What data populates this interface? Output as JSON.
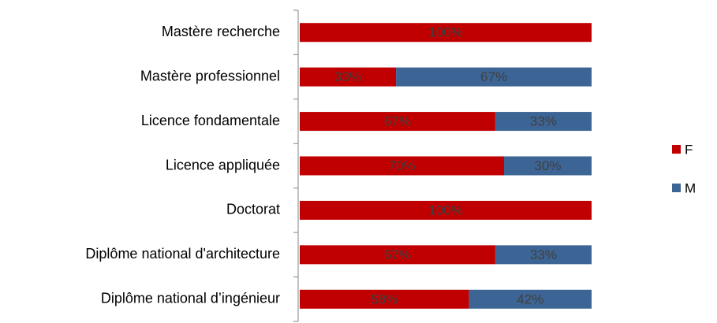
{
  "chart_data": {
    "type": "stacked-bar-horizontal",
    "categories": [
      "Mastère recherche",
      "Mastère professionnel",
      "Licence fondamentale",
      "Licence appliquée",
      "Doctorat",
      "Diplôme national d'architecture",
      "Diplôme national d’ingénieur"
    ],
    "xlim": [
      0,
      100
    ],
    "series": [
      {
        "name": "F",
        "color": "#c00000",
        "values": [
          100,
          33,
          67,
          70,
          100,
          67,
          58
        ],
        "value_labels": [
          "100%",
          "33%",
          "67%",
          "70%",
          "100%",
          "67%",
          "58%"
        ]
      },
      {
        "name": "M",
        "color": "#3c6494",
        "values": [
          0,
          67,
          33,
          30,
          0,
          33,
          42
        ],
        "value_labels": [
          null,
          "67%",
          "33%",
          "30%",
          null,
          "33%",
          "42%"
        ]
      }
    ],
    "legend": "right"
  }
}
